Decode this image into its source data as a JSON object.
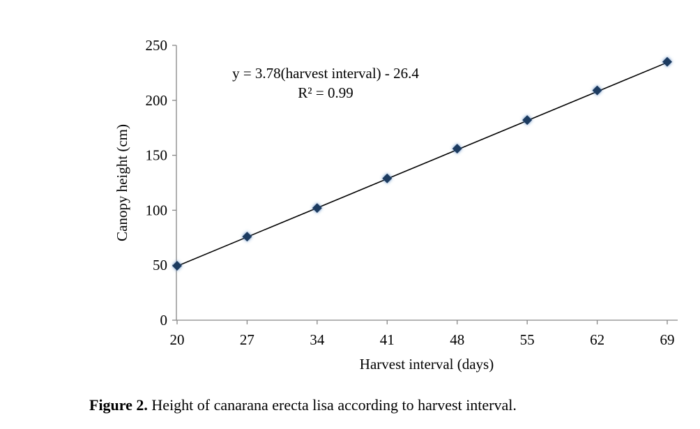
{
  "chart_data": {
    "type": "scatter",
    "title": "",
    "xlabel": "Harvest interval (days)",
    "ylabel": "Canopy height (cm)",
    "x": [
      20,
      27,
      34,
      41,
      48,
      55,
      62,
      69
    ],
    "series": [
      {
        "name": "Canopy height",
        "values": [
          49.5,
          76,
          102,
          129,
          156,
          182,
          209,
          235
        ]
      }
    ],
    "xticks": [
      "20",
      "27",
      "34",
      "41",
      "48",
      "55",
      "62",
      "69"
    ],
    "yticks": [
      "0",
      "50",
      "100",
      "150",
      "200",
      "250"
    ],
    "ylim": [
      0,
      250
    ],
    "xlim": [
      20,
      69
    ],
    "trendline": {
      "slope": 3.78,
      "intercept": -26.4
    },
    "annotation": {
      "equation": "y = 3.78(harvest interval) - 26.4",
      "r2": "R² = 0.99"
    },
    "grid": false,
    "legend": "none",
    "marker_color": "#1f3a60",
    "glow_color": "#4f81bd"
  },
  "caption": {
    "label": "Figure 2.",
    "text": " Height of canarana erecta lisa according to harvest interval."
  }
}
